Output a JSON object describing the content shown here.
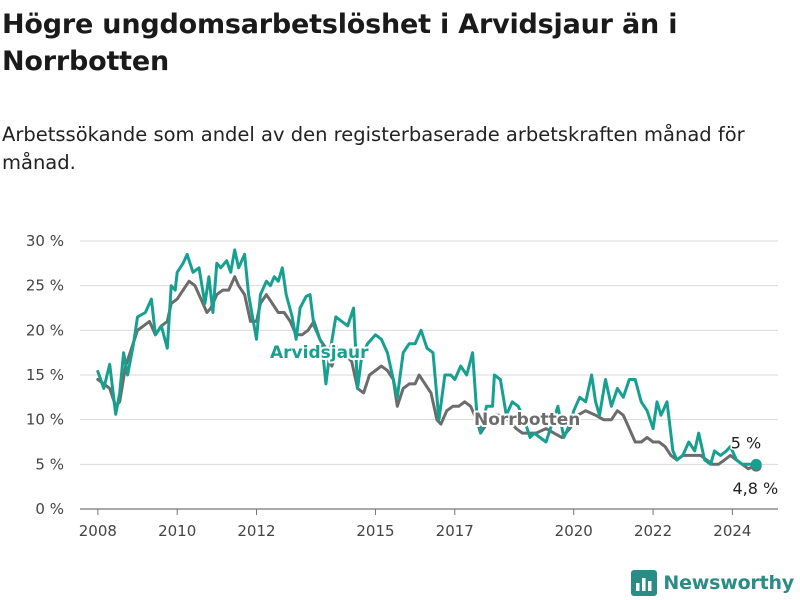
{
  "header": {
    "title": "Högre ungdomsarbetslöshet i Arvidsjaur än i Norrbotten",
    "subtitle": "Arbetssökande som andel av den registerbaserade arbetskraften månad för månad."
  },
  "brand": {
    "name": "Newsworthy",
    "icon": "bar-chart-logo-icon",
    "color": "#2a8c84"
  },
  "chart_data": {
    "type": "line",
    "ylim": [
      0,
      30
    ],
    "y_ticks": [
      0,
      5,
      10,
      15,
      20,
      25,
      30
    ],
    "y_tick_labels": [
      "0 %",
      "5 %",
      "10 %",
      "15 %",
      "20 %",
      "25 %",
      "30 %"
    ],
    "x_ticks": [
      2008,
      2010,
      2012,
      2015,
      2017,
      2020,
      2022,
      2024
    ],
    "x_tick_labels": [
      "2008",
      "2010",
      "2012",
      "2015",
      "2017",
      "2020",
      "2022",
      "2024"
    ],
    "grid": true,
    "series": [
      {
        "name": "Arvidsjaur",
        "color": "#17a08f",
        "end_label": "5 %",
        "points": [
          [
            2008.0,
            15.4
          ],
          [
            2008.15,
            13.5
          ],
          [
            2008.3,
            16.2
          ],
          [
            2008.45,
            10.6
          ],
          [
            2008.55,
            13.0
          ],
          [
            2008.65,
            17.5
          ],
          [
            2008.75,
            15.0
          ],
          [
            2008.9,
            18.5
          ],
          [
            2009.0,
            21.5
          ],
          [
            2009.2,
            22.0
          ],
          [
            2009.35,
            23.5
          ],
          [
            2009.45,
            19.5
          ],
          [
            2009.6,
            20.5
          ],
          [
            2009.75,
            18.0
          ],
          [
            2009.85,
            25.0
          ],
          [
            2009.95,
            24.5
          ],
          [
            2010.0,
            26.5
          ],
          [
            2010.15,
            27.5
          ],
          [
            2010.25,
            28.5
          ],
          [
            2010.4,
            26.5
          ],
          [
            2010.55,
            27.0
          ],
          [
            2010.7,
            23.0
          ],
          [
            2010.8,
            26.0
          ],
          [
            2010.9,
            22.0
          ],
          [
            2011.0,
            27.5
          ],
          [
            2011.1,
            27.0
          ],
          [
            2011.25,
            27.8
          ],
          [
            2011.35,
            26.5
          ],
          [
            2011.45,
            29.0
          ],
          [
            2011.55,
            27.0
          ],
          [
            2011.7,
            28.5
          ],
          [
            2011.8,
            24.0
          ],
          [
            2011.9,
            21.5
          ],
          [
            2012.0,
            19.0
          ],
          [
            2012.1,
            24.0
          ],
          [
            2012.25,
            25.5
          ],
          [
            2012.35,
            25.0
          ],
          [
            2012.45,
            26.0
          ],
          [
            2012.55,
            25.5
          ],
          [
            2012.65,
            27.0
          ],
          [
            2012.75,
            24.0
          ],
          [
            2012.9,
            21.5
          ],
          [
            2013.0,
            19.0
          ],
          [
            2013.1,
            22.5
          ],
          [
            2013.25,
            23.8
          ],
          [
            2013.35,
            24.0
          ],
          [
            2013.45,
            20.5
          ],
          [
            2013.55,
            19.5
          ],
          [
            2013.65,
            18.5
          ],
          [
            2013.75,
            14.0
          ],
          [
            2013.85,
            17.5
          ],
          [
            2014.0,
            21.5
          ],
          [
            2014.15,
            21.0
          ],
          [
            2014.3,
            20.5
          ],
          [
            2014.45,
            22.5
          ],
          [
            2014.55,
            13.5
          ],
          [
            2014.65,
            17.0
          ],
          [
            2014.8,
            18.5
          ],
          [
            2015.0,
            19.5
          ],
          [
            2015.15,
            19.0
          ],
          [
            2015.3,
            17.5
          ],
          [
            2015.45,
            14.5
          ],
          [
            2015.55,
            12.5
          ],
          [
            2015.7,
            17.5
          ],
          [
            2015.85,
            18.5
          ],
          [
            2016.0,
            18.5
          ],
          [
            2016.15,
            20.0
          ],
          [
            2016.3,
            18.0
          ],
          [
            2016.45,
            17.5
          ],
          [
            2016.6,
            10.0
          ],
          [
            2016.75,
            15.0
          ],
          [
            2016.9,
            15.0
          ],
          [
            2017.0,
            14.5
          ],
          [
            2017.15,
            16.0
          ],
          [
            2017.3,
            15.0
          ],
          [
            2017.45,
            17.5
          ],
          [
            2017.55,
            11.0
          ],
          [
            2017.65,
            8.5
          ],
          [
            2017.8,
            11.5
          ],
          [
            2017.95,
            11.5
          ],
          [
            2018.0,
            15.0
          ],
          [
            2018.15,
            14.5
          ],
          [
            2018.3,
            10.5
          ],
          [
            2018.45,
            12.0
          ],
          [
            2018.6,
            11.5
          ],
          [
            2018.75,
            10.0
          ],
          [
            2018.9,
            8.0
          ],
          [
            2019.0,
            8.5
          ],
          [
            2019.15,
            8.0
          ],
          [
            2019.3,
            7.5
          ],
          [
            2019.45,
            9.5
          ],
          [
            2019.6,
            11.5
          ],
          [
            2019.75,
            8.0
          ],
          [
            2019.9,
            9.5
          ],
          [
            2020.0,
            11.0
          ],
          [
            2020.15,
            12.5
          ],
          [
            2020.3,
            12.0
          ],
          [
            2020.45,
            15.0
          ],
          [
            2020.55,
            12.0
          ],
          [
            2020.65,
            10.5
          ],
          [
            2020.8,
            14.5
          ],
          [
            2020.95,
            11.5
          ],
          [
            2021.1,
            13.5
          ],
          [
            2021.25,
            12.5
          ],
          [
            2021.4,
            14.5
          ],
          [
            2021.55,
            14.5
          ],
          [
            2021.7,
            12.0
          ],
          [
            2021.85,
            11.0
          ],
          [
            2022.0,
            9.0
          ],
          [
            2022.1,
            12.0
          ],
          [
            2022.2,
            10.5
          ],
          [
            2022.35,
            12.0
          ],
          [
            2022.5,
            6.5
          ],
          [
            2022.6,
            5.5
          ],
          [
            2022.75,
            6.0
          ],
          [
            2022.9,
            7.5
          ],
          [
            2023.05,
            6.5
          ],
          [
            2023.15,
            8.5
          ],
          [
            2023.3,
            5.5
          ],
          [
            2023.45,
            5.0
          ],
          [
            2023.55,
            6.5
          ],
          [
            2023.7,
            6.0
          ],
          [
            2023.85,
            6.5
          ],
          [
            2023.95,
            7.0
          ],
          [
            2024.1,
            5.5
          ],
          [
            2024.25,
            5.0
          ],
          [
            2024.4,
            5.0
          ],
          [
            2024.5,
            5.0
          ],
          [
            2024.6,
            5.0
          ]
        ]
      },
      {
        "name": "Norrbotten",
        "color": "#6c6c6c",
        "end_label": "4,8 %",
        "points": [
          [
            2008.0,
            14.5
          ],
          [
            2008.15,
            14.0
          ],
          [
            2008.3,
            13.5
          ],
          [
            2008.45,
            11.5
          ],
          [
            2008.55,
            12.0
          ],
          [
            2008.7,
            16.0
          ],
          [
            2008.85,
            18.0
          ],
          [
            2009.0,
            20.0
          ],
          [
            2009.15,
            20.5
          ],
          [
            2009.3,
            21.0
          ],
          [
            2009.45,
            19.5
          ],
          [
            2009.6,
            20.5
          ],
          [
            2009.75,
            21.0
          ],
          [
            2009.85,
            23.0
          ],
          [
            2010.0,
            23.5
          ],
          [
            2010.15,
            24.5
          ],
          [
            2010.3,
            25.5
          ],
          [
            2010.45,
            25.0
          ],
          [
            2010.6,
            23.5
          ],
          [
            2010.75,
            22.0
          ],
          [
            2010.85,
            22.5
          ],
          [
            2011.0,
            24.0
          ],
          [
            2011.15,
            24.5
          ],
          [
            2011.3,
            24.5
          ],
          [
            2011.45,
            26.0
          ],
          [
            2011.55,
            25.0
          ],
          [
            2011.7,
            24.0
          ],
          [
            2011.85,
            21.0
          ],
          [
            2012.0,
            21.0
          ],
          [
            2012.1,
            23.0
          ],
          [
            2012.25,
            24.0
          ],
          [
            2012.4,
            23.0
          ],
          [
            2012.55,
            22.0
          ],
          [
            2012.7,
            22.0
          ],
          [
            2012.85,
            21.0
          ],
          [
            2013.0,
            19.5
          ],
          [
            2013.15,
            19.5
          ],
          [
            2013.3,
            20.0
          ],
          [
            2013.45,
            21.0
          ],
          [
            2013.6,
            19.0
          ],
          [
            2013.75,
            18.0
          ],
          [
            2013.9,
            16.0
          ],
          [
            2014.05,
            18.0
          ],
          [
            2014.2,
            17.5
          ],
          [
            2014.4,
            16.5
          ],
          [
            2014.55,
            13.5
          ],
          [
            2014.7,
            13.0
          ],
          [
            2014.85,
            15.0
          ],
          [
            2015.0,
            15.5
          ],
          [
            2015.15,
            16.0
          ],
          [
            2015.3,
            15.5
          ],
          [
            2015.45,
            14.5
          ],
          [
            2015.55,
            11.5
          ],
          [
            2015.7,
            13.5
          ],
          [
            2015.85,
            14.0
          ],
          [
            2016.0,
            14.0
          ],
          [
            2016.1,
            15.0
          ],
          [
            2016.25,
            14.0
          ],
          [
            2016.4,
            13.0
          ],
          [
            2016.55,
            10.0
          ],
          [
            2016.65,
            9.5
          ],
          [
            2016.8,
            11.0
          ],
          [
            2016.95,
            11.5
          ],
          [
            2017.1,
            11.5
          ],
          [
            2017.25,
            12.0
          ],
          [
            2017.4,
            11.5
          ],
          [
            2017.55,
            10.0
          ],
          [
            2017.65,
            8.5
          ],
          [
            2017.8,
            9.5
          ],
          [
            2017.95,
            10.5
          ],
          [
            2018.15,
            10.5
          ],
          [
            2018.35,
            10.0
          ],
          [
            2018.55,
            9.0
          ],
          [
            2018.7,
            8.5
          ],
          [
            2018.85,
            8.5
          ],
          [
            2019.05,
            8.5
          ],
          [
            2019.3,
            9.0
          ],
          [
            2019.5,
            8.5
          ],
          [
            2019.7,
            8.0
          ],
          [
            2019.9,
            9.0
          ],
          [
            2020.1,
            10.5
          ],
          [
            2020.3,
            11.0
          ],
          [
            2020.55,
            10.5
          ],
          [
            2020.75,
            10.0
          ],
          [
            2020.95,
            10.0
          ],
          [
            2021.1,
            11.0
          ],
          [
            2021.25,
            10.5
          ],
          [
            2021.4,
            9.0
          ],
          [
            2021.55,
            7.5
          ],
          [
            2021.7,
            7.5
          ],
          [
            2021.85,
            8.0
          ],
          [
            2022.0,
            7.5
          ],
          [
            2022.15,
            7.5
          ],
          [
            2022.3,
            7.0
          ],
          [
            2022.45,
            6.0
          ],
          [
            2022.6,
            5.5
          ],
          [
            2022.75,
            6.0
          ],
          [
            2022.9,
            6.0
          ],
          [
            2023.05,
            6.0
          ],
          [
            2023.2,
            6.0
          ],
          [
            2023.35,
            5.5
          ],
          [
            2023.5,
            5.0
          ],
          [
            2023.65,
            5.0
          ],
          [
            2023.8,
            5.5
          ],
          [
            2023.95,
            6.0
          ],
          [
            2024.1,
            5.5
          ],
          [
            2024.25,
            5.0
          ],
          [
            2024.4,
            4.5
          ],
          [
            2024.5,
            4.7
          ],
          [
            2024.6,
            4.8
          ]
        ]
      }
    ]
  }
}
